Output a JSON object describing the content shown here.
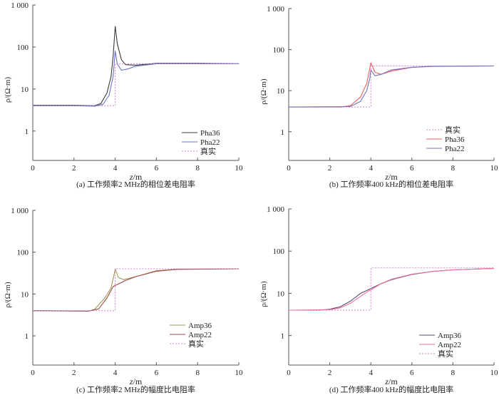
{
  "chart_data": [
    {
      "type": "line",
      "caption": "(a) 工作频率2 MHz的相位差电阻率",
      "xlabel_var": "z",
      "xlabel_unit": "/m",
      "ylabel": "ρ/(Ω·m)",
      "xlim": [
        0,
        10
      ],
      "ylim": [
        0.2,
        1000
      ],
      "yscale": "log",
      "xticks": [
        "0",
        "2",
        "4",
        "6",
        "8",
        "10"
      ],
      "yticks": [
        "1",
        "10",
        "100",
        "1 000"
      ],
      "legend_position": "bottom-right",
      "series": [
        {
          "name": "Pha36",
          "color": "#3a3a3a",
          "dash": false,
          "x": [
            0,
            2,
            3,
            3.3,
            3.6,
            3.8,
            3.9,
            4.0,
            4.1,
            4.3,
            4.5,
            5,
            6,
            8,
            10
          ],
          "y": [
            4.1,
            4.1,
            4.0,
            4.5,
            8,
            20,
            60,
            310,
            120,
            50,
            38,
            37,
            41,
            41,
            40
          ]
        },
        {
          "name": "Pha22",
          "color": "#6a70c8",
          "dash": false,
          "x": [
            0,
            2,
            3,
            3.4,
            3.7,
            3.9,
            4.0,
            4.1,
            4.3,
            4.6,
            5,
            6,
            10
          ],
          "y": [
            4.0,
            4.0,
            3.9,
            4.3,
            7,
            20,
            80,
            40,
            28,
            30,
            35,
            40,
            40
          ]
        },
        {
          "name": "真实",
          "color": "#d080d0",
          "dash": true,
          "x": [
            0,
            4,
            4,
            10
          ],
          "y": [
            4,
            4,
            40,
            40
          ]
        }
      ]
    },
    {
      "type": "line",
      "caption": "(b) 工作频率400 kHz的相位差电阻率",
      "xlabel_var": "z",
      "xlabel_unit": "/m",
      "ylabel": "ρ/(Ω·m)",
      "xlim": [
        0,
        10
      ],
      "ylim": [
        0.2,
        1000
      ],
      "yscale": "log",
      "xticks": [
        "0",
        "2",
        "4",
        "6",
        "8",
        "10"
      ],
      "yticks": [
        "1",
        "10",
        "100",
        "1 000"
      ],
      "legend_position": "bottom-right",
      "series": [
        {
          "name": "真实",
          "color": "#d080d0",
          "dash": true,
          "x": [
            0,
            4,
            4,
            10
          ],
          "y": [
            4,
            4,
            40,
            40
          ]
        },
        {
          "name": "Pha36",
          "color": "#f06060",
          "dash": false,
          "x": [
            0,
            2.5,
            3,
            3.5,
            3.8,
            3.95,
            4.0,
            4.2,
            4.5,
            5,
            6,
            7,
            10
          ],
          "y": [
            4,
            4,
            4.3,
            7,
            15,
            35,
            48,
            28,
            25,
            30,
            37,
            39,
            40
          ]
        },
        {
          "name": "Pha22",
          "color": "#7070c0",
          "dash": false,
          "x": [
            0,
            3,
            3.5,
            3.8,
            3.95,
            4.0,
            4.2,
            4.5,
            5,
            6,
            7,
            10
          ],
          "y": [
            4,
            4.1,
            5.5,
            10,
            20,
            32,
            23,
            25,
            32,
            37,
            39,
            40
          ]
        }
      ]
    },
    {
      "type": "line",
      "caption": "(c) 工作频率2 MHz的幅度比电阻率",
      "xlabel_var": "z",
      "xlabel_unit": "/m",
      "ylabel": "ρ/(Ω·m)",
      "xlim": [
        0,
        10
      ],
      "ylim": [
        0.2,
        1000
      ],
      "yscale": "log",
      "xticks": [
        "0",
        "2",
        "4",
        "6",
        "8",
        "10"
      ],
      "yticks": [
        "1",
        "10",
        "100",
        "1 000"
      ],
      "legend_position": "bottom-right",
      "series": [
        {
          "name": "Amp36",
          "color": "#a09a50",
          "dash": false,
          "x": [
            0,
            2.7,
            3.0,
            3.5,
            3.8,
            3.95,
            4.0,
            4.15,
            4.4,
            5,
            6,
            7,
            10
          ],
          "y": [
            4,
            3.9,
            4.3,
            8,
            14,
            30,
            40,
            25,
            22,
            26,
            36,
            39,
            40
          ]
        },
        {
          "name": "Amp22",
          "color": "#9a4a4a",
          "dash": false,
          "x": [
            0,
            2.7,
            3.2,
            3.6,
            3.9,
            4.0,
            4.5,
            5,
            6,
            7,
            10
          ],
          "y": [
            4,
            3.9,
            4.4,
            8,
            15,
            16,
            21,
            26,
            35,
            39,
            40
          ]
        },
        {
          "name": "真实",
          "color": "#d080d0",
          "dash": true,
          "x": [
            0,
            4,
            4,
            10
          ],
          "y": [
            4,
            4,
            40,
            40
          ]
        }
      ]
    },
    {
      "type": "line",
      "caption": "(d) 工作频率400 kHz的幅度比电阻率",
      "xlabel_var": "z",
      "xlabel_unit": "/m",
      "ylabel": "ρ/(Ω·m)",
      "xlim": [
        0,
        10
      ],
      "ylim": [
        0.2,
        1000
      ],
      "yscale": "log",
      "xticks": [
        "0",
        "2",
        "4",
        "6",
        "8",
        "10"
      ],
      "yticks": [
        "1",
        "10",
        "100",
        "1 000"
      ],
      "legend_position": "bottom-right",
      "series": [
        {
          "name": "Amp36",
          "color": "#5a4a70",
          "dash": false,
          "x": [
            0,
            1.5,
            2,
            2.5,
            3,
            3.5,
            4.0,
            4.5,
            5,
            6,
            7,
            8,
            10
          ],
          "y": [
            4,
            4,
            4.2,
            4.8,
            6.5,
            10,
            13,
            17,
            21,
            28,
            33,
            36,
            39
          ]
        },
        {
          "name": "Amp22",
          "color": "#f070a0",
          "dash": false,
          "x": [
            0,
            2,
            2.5,
            3,
            3.5,
            3.9,
            4.0,
            4.5,
            5,
            6,
            7,
            8,
            10
          ],
          "y": [
            4,
            4.1,
            4.5,
            5.8,
            8.5,
            11.5,
            12,
            17,
            21.5,
            28.5,
            33,
            36,
            39
          ]
        },
        {
          "name": "真实",
          "color": "#d080d0",
          "dash": true,
          "x": [
            0,
            4,
            4,
            10
          ],
          "y": [
            4,
            4,
            40,
            40
          ]
        }
      ]
    }
  ]
}
